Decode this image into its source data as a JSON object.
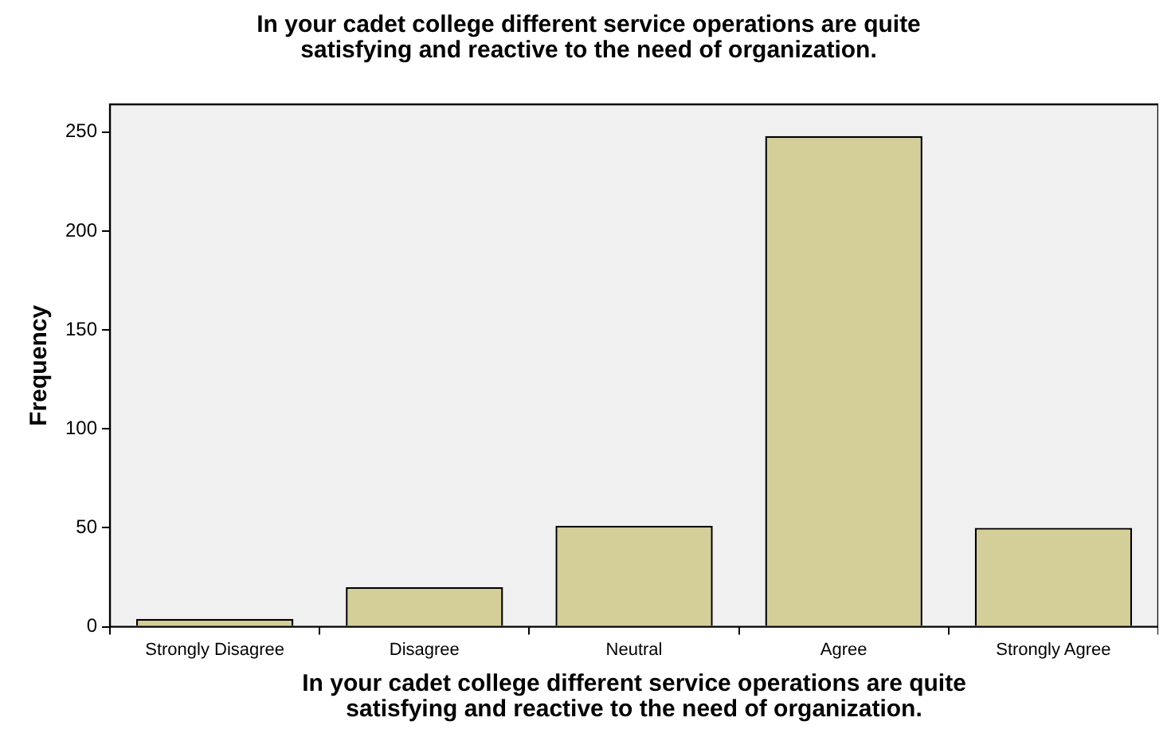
{
  "chart_data": {
    "type": "bar",
    "title": "In your cadet college different service operations are quite satisfying and reactive to the need of organization.",
    "xlabel": "In your cadet college different service operations are quite satisfying and reactive to the need of organization.",
    "ylabel": "Frequency",
    "categories": [
      "Strongly Disagree",
      "Disagree",
      "Neutral",
      "Agree",
      "Strongly Agree"
    ],
    "values": [
      4,
      20,
      51,
      248,
      50
    ],
    "color": "#d4ce98",
    "ylim": [
      0,
      264
    ],
    "yticks": [
      0,
      50,
      100,
      150,
      200,
      250
    ],
    "grid": false,
    "legend": false
  }
}
